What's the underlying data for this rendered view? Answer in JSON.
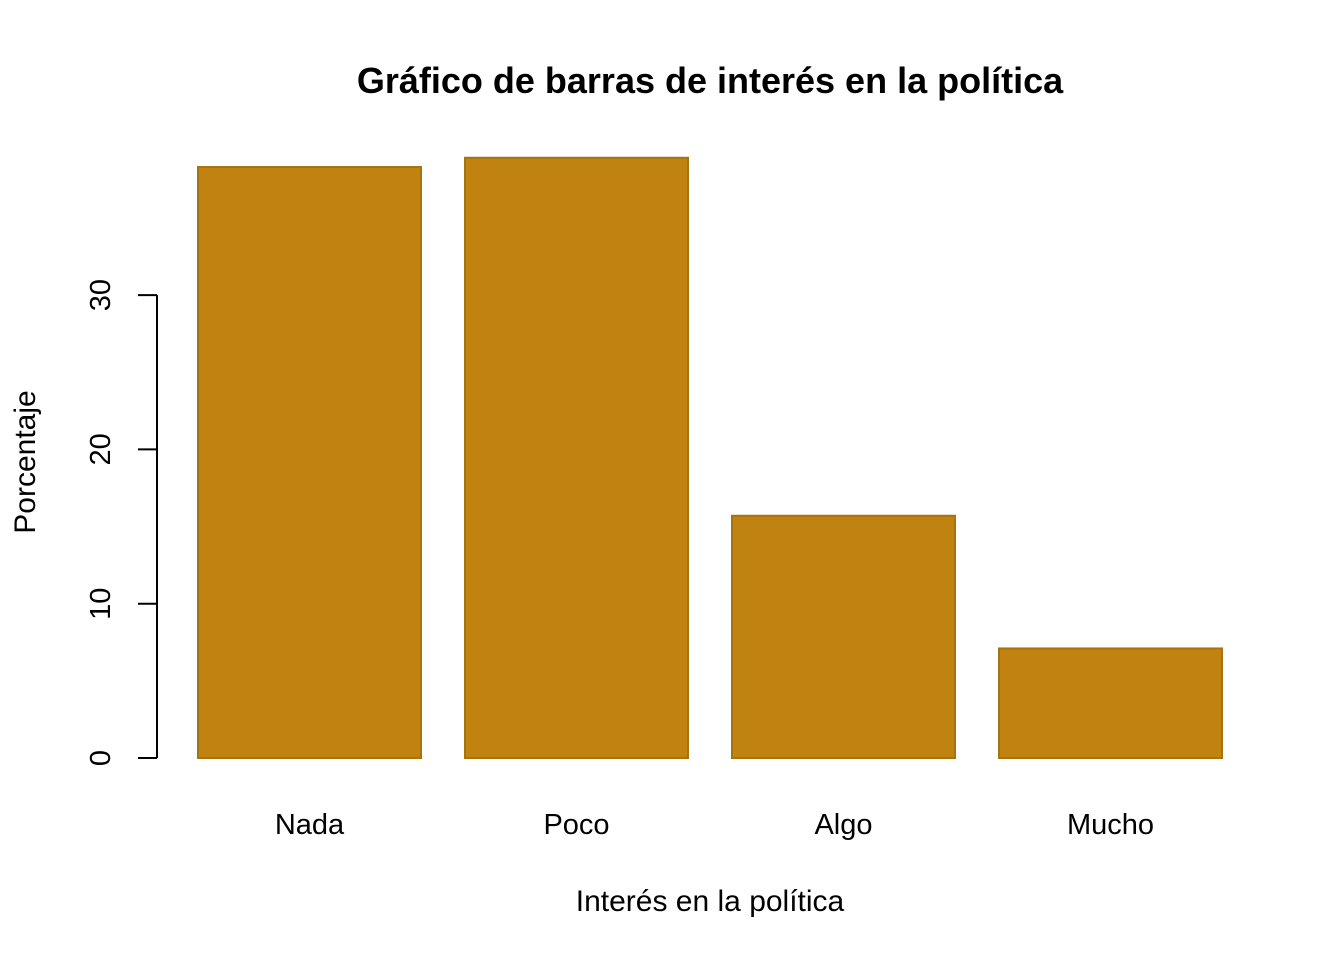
{
  "chart_data": {
    "type": "bar",
    "title": "Gráfico de barras de interés en la política",
    "xlabel": "Interés en la política",
    "ylabel": "Porcentaje",
    "categories": [
      "Nada",
      "Poco",
      "Algo",
      "Mucho"
    ],
    "values": [
      38.3,
      38.9,
      15.7,
      7.1
    ],
    "ylim": [
      0,
      40
    ],
    "yticks": [
      0,
      10,
      20,
      30
    ],
    "grid": false,
    "bar_color": "#C0830F",
    "bar_border_color": "#A6730E"
  }
}
